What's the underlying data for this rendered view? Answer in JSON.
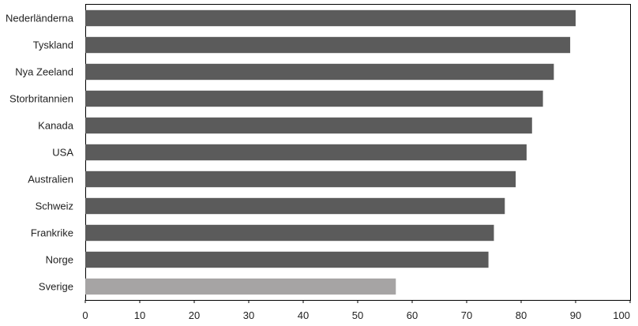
{
  "chart_data": {
    "type": "bar",
    "orientation": "horizontal",
    "title": "",
    "xlabel": "",
    "ylabel": "",
    "xlim": [
      0,
      100
    ],
    "xticks": [
      0,
      10,
      20,
      30,
      40,
      50,
      60,
      70,
      80,
      90,
      100
    ],
    "grid": false,
    "categories": [
      "Nederländerna",
      "Tyskland",
      "Nya Zeeland",
      "Storbritannien",
      "Kanada",
      "USA",
      "Australien",
      "Schweiz",
      "Frankrike",
      "Norge",
      "Sverige"
    ],
    "values": [
      90,
      89,
      86,
      84,
      82,
      81,
      79,
      77,
      75,
      74,
      57
    ],
    "colors": {
      "default_bar": "#5b5b5b",
      "highlight_bar": "#a6a4a4",
      "highlight_category": "Sverige"
    }
  }
}
